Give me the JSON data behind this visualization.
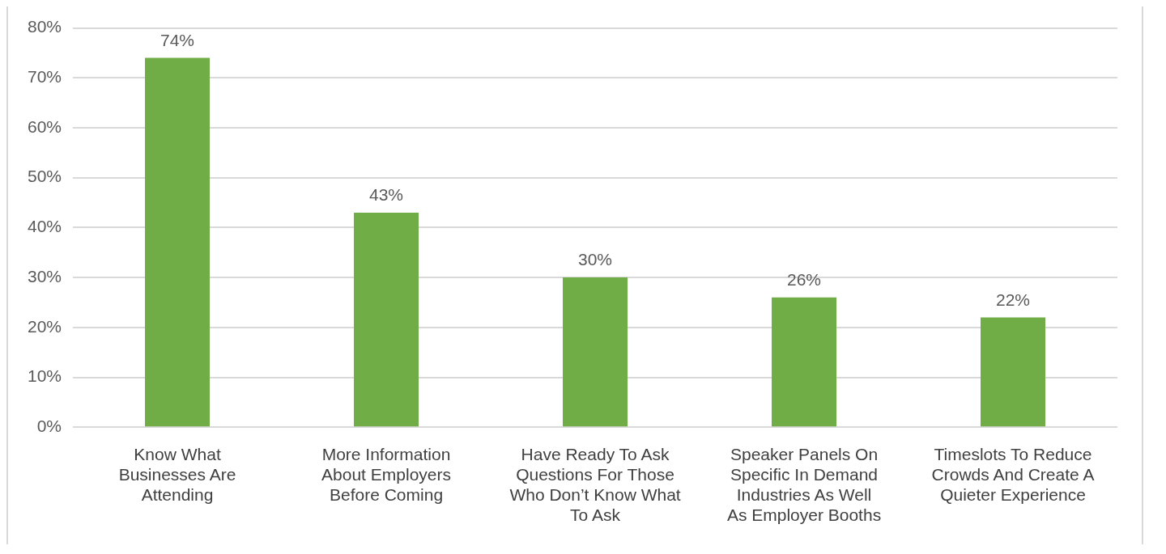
{
  "chart_data": {
    "type": "bar",
    "categories": [
      "Know What Businesses Are Attending",
      "More Information About Employers Before Coming",
      "Have Ready To Ask Questions For Those Who Don’t Know What To Ask",
      "Speaker Panels On Specific In Demand Industries As Well As Employer Booths",
      "Timeslots To Reduce Crowds And Create A Quieter Experience"
    ],
    "values": [
      74,
      43,
      30,
      26,
      22
    ],
    "value_labels": [
      "74%",
      "43%",
      "30%",
      "26%",
      "22%"
    ],
    "color": "#70ad47",
    "ylim": [
      0,
      80
    ],
    "yticks": [
      {
        "value": 0,
        "label": "0%"
      },
      {
        "value": 10,
        "label": "10%"
      },
      {
        "value": 20,
        "label": "20%"
      },
      {
        "value": 30,
        "label": "30%"
      },
      {
        "value": 40,
        "label": "40%"
      },
      {
        "value": 50,
        "label": "50%"
      },
      {
        "value": 60,
        "label": "60%"
      },
      {
        "value": 70,
        "label": "70%"
      },
      {
        "value": 80,
        "label": "80%"
      }
    ],
    "grid": "y",
    "legend": false
  }
}
